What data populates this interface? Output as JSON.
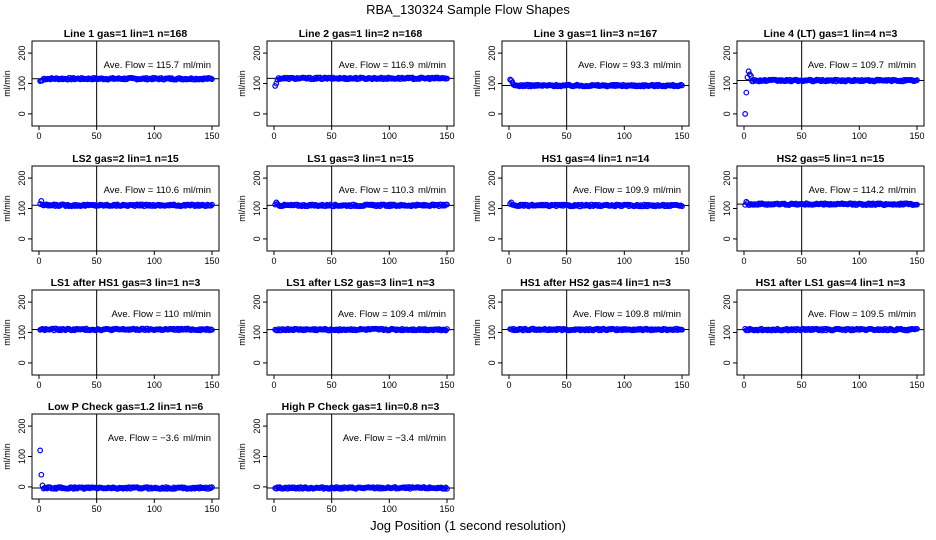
{
  "title": "RBA_130324  Sample Flow Shapes",
  "xlabel": "Jog Position (1 second resolution)",
  "ylabel": "ml/min",
  "flow_prefix": "Ave. Flow = ",
  "flow_unit": "ml/min",
  "colors": {
    "points": "#0000ff",
    "axis": "#000000",
    "reference": "#000000"
  },
  "chart_data": [
    {
      "type": "scatter",
      "title": "Line 1 gas=1 lin=1 n=168",
      "ave_flow": "115.7",
      "level": 115.7,
      "start": [
        108,
        109,
        110
      ],
      "vline": 50,
      "xlim": [
        0,
        150
      ],
      "ylim": [
        -20,
        220
      ],
      "xticks": [
        0,
        50,
        100,
        150
      ],
      "yticks": [
        0,
        100,
        200
      ]
    },
    {
      "type": "scatter",
      "title": "Line 2 gas=1 lin=2 n=168",
      "ave_flow": "116.9",
      "level": 116.9,
      "start": [
        92,
        100,
        112
      ],
      "vline": 50,
      "xlim": [
        0,
        150
      ],
      "ylim": [
        -20,
        220
      ],
      "xticks": [
        0,
        50,
        100,
        150
      ],
      "yticks": [
        0,
        100,
        200
      ]
    },
    {
      "type": "scatter",
      "title": "Line 3 gas=1 lin=3 n=167",
      "ave_flow": "93.3",
      "level": 93.3,
      "start": [
        113,
        110,
        104
      ],
      "vline": 50,
      "xlim": [
        0,
        150
      ],
      "ylim": [
        -20,
        220
      ],
      "xticks": [
        0,
        50,
        100,
        150
      ],
      "yticks": [
        0,
        100,
        200
      ]
    },
    {
      "type": "scatter",
      "title": "Line 4 (LT) gas=1 lin=4 n=3",
      "ave_flow": "109.7",
      "level": 109.7,
      "start": [
        0,
        70,
        120,
        140,
        130,
        125
      ],
      "vline": 50,
      "xlim": [
        0,
        150
      ],
      "ylim": [
        -20,
        220
      ],
      "xticks": [
        0,
        50,
        100,
        150
      ],
      "yticks": [
        0,
        100,
        200
      ]
    },
    {
      "type": "scatter",
      "title": "LS2 gas=2 lin=1 n=15",
      "ave_flow": "110.6",
      "level": 110.6,
      "start": [
        115,
        125,
        112
      ],
      "vline": 50,
      "xlim": [
        0,
        150
      ],
      "ylim": [
        -20,
        220
      ],
      "xticks": [
        0,
        50,
        100,
        150
      ],
      "yticks": [
        0,
        100,
        200
      ]
    },
    {
      "type": "scatter",
      "title": "LS1 gas=3 lin=1 n=15",
      "ave_flow": "110.3",
      "level": 110.3,
      "start": [
        113,
        120,
        115
      ],
      "vline": 50,
      "xlim": [
        0,
        150
      ],
      "ylim": [
        -20,
        220
      ],
      "xticks": [
        0,
        50,
        100,
        150
      ],
      "yticks": [
        0,
        100,
        200
      ]
    },
    {
      "type": "scatter",
      "title": "HS1 gas=4 lin=1 n=14",
      "ave_flow": "109.9",
      "level": 109.9,
      "start": [
        115,
        120,
        112
      ],
      "vline": 50,
      "xlim": [
        0,
        150
      ],
      "ylim": [
        -20,
        220
      ],
      "xticks": [
        0,
        50,
        100,
        150
      ],
      "yticks": [
        0,
        100,
        200
      ]
    },
    {
      "type": "scatter",
      "title": "HS2 gas=5 lin=1 n=15",
      "ave_flow": "114.2",
      "level": 114.2,
      "start": [
        112,
        122,
        118
      ],
      "vline": 50,
      "xlim": [
        0,
        150
      ],
      "ylim": [
        -20,
        220
      ],
      "xticks": [
        0,
        50,
        100,
        150
      ],
      "yticks": [
        0,
        100,
        200
      ]
    },
    {
      "type": "scatter",
      "title": "LS1 after HS1 gas=3 lin=1 n=3",
      "ave_flow": "110",
      "level": 110,
      "start": [],
      "vline": 50,
      "xlim": [
        0,
        150
      ],
      "ylim": [
        -20,
        220
      ],
      "xticks": [
        0,
        50,
        100,
        150
      ],
      "yticks": [
        0,
        100,
        200
      ]
    },
    {
      "type": "scatter",
      "title": "LS1 after LS2 gas=3 lin=1 n=3",
      "ave_flow": "109.4",
      "level": 109.4,
      "start": [],
      "vline": 50,
      "xlim": [
        0,
        150
      ],
      "ylim": [
        -20,
        220
      ],
      "xticks": [
        0,
        50,
        100,
        150
      ],
      "yticks": [
        0,
        100,
        200
      ]
    },
    {
      "type": "scatter",
      "title": "HS1 after HS2 gas=4 lin=1 n=3",
      "ave_flow": "109.8",
      "level": 109.8,
      "start": [],
      "vline": 50,
      "xlim": [
        0,
        150
      ],
      "ylim": [
        -20,
        220
      ],
      "xticks": [
        0,
        50,
        100,
        150
      ],
      "yticks": [
        0,
        100,
        200
      ]
    },
    {
      "type": "scatter",
      "title": "HS1 after LS1 gas=4 lin=1 n=3",
      "ave_flow": "109.5",
      "level": 109.5,
      "start": [],
      "vline": 50,
      "xlim": [
        0,
        150
      ],
      "ylim": [
        -20,
        220
      ],
      "xticks": [
        0,
        50,
        100,
        150
      ],
      "yticks": [
        0,
        100,
        200
      ]
    },
    {
      "type": "scatter",
      "title": "Low P Check gas=1.2 lin=1 n=6",
      "ave_flow": "−3.6",
      "level": -3.6,
      "start": [
        120,
        40,
        5
      ],
      "vline": 50,
      "xlim": [
        0,
        150
      ],
      "ylim": [
        -20,
        220
      ],
      "xticks": [
        0,
        50,
        100,
        150
      ],
      "yticks": [
        0,
        100,
        200
      ]
    },
    {
      "type": "scatter",
      "title": "High P Check gas=1 lin=0.8 n=3",
      "ave_flow": "−3.4",
      "level": -3.4,
      "start": [],
      "vline": 50,
      "xlim": [
        0,
        150
      ],
      "ylim": [
        -20,
        220
      ],
      "xticks": [
        0,
        50,
        100,
        150
      ],
      "yticks": [
        0,
        100,
        200
      ]
    }
  ]
}
